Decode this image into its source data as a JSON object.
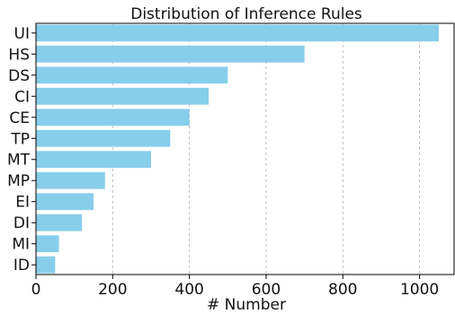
{
  "chart_data": {
    "type": "bar",
    "orientation": "horizontal",
    "title": "Distribution of Inference Rules",
    "xlabel": "# Number",
    "ylabel": "",
    "categories": [
      "UI",
      "HS",
      "DS",
      "CI",
      "CE",
      "TP",
      "MT",
      "MP",
      "EI",
      "DI",
      "MI",
      "ID"
    ],
    "values": [
      1050,
      700,
      500,
      450,
      400,
      350,
      300,
      180,
      150,
      120,
      60,
      50
    ],
    "xlim": [
      0,
      1090
    ],
    "xticks": [
      0,
      200,
      400,
      600,
      800,
      1000
    ],
    "grid": "x-dashed",
    "bar_color": "#87CEEB"
  }
}
